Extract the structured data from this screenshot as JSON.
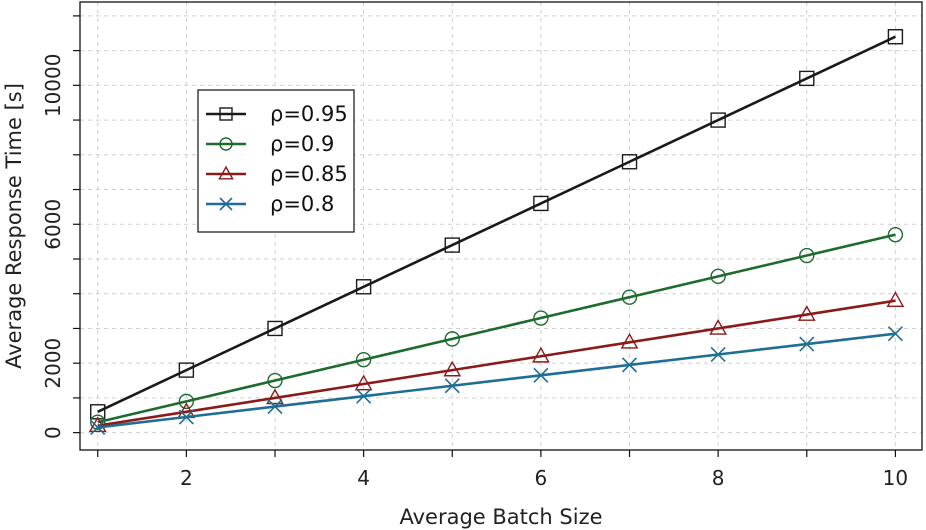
{
  "chart_data": {
    "type": "line",
    "xlabel": "Average Batch Size",
    "ylabel": "Average Response Time [s]",
    "xlim": [
      0.8,
      10.3
    ],
    "ylim": [
      -500,
      12400
    ],
    "xticks": [
      2,
      4,
      6,
      8,
      10
    ],
    "yticks": [
      0,
      2000,
      6000,
      10000
    ],
    "grid": true,
    "legend_position": "top-left",
    "x": [
      1,
      2,
      3,
      4,
      5,
      6,
      7,
      8,
      9,
      10
    ],
    "series": [
      {
        "name": "ρ=0.95",
        "color": "#1a1a1a",
        "marker": "square",
        "values": [
          600,
          1800,
          3000,
          4200,
          5400,
          6600,
          7800,
          9000,
          10200,
          11400
        ]
      },
      {
        "name": "ρ=0.9",
        "color": "#1e6b2e",
        "marker": "circle",
        "values": [
          300,
          900,
          1500,
          2100,
          2700,
          3300,
          3900,
          4500,
          5100,
          5700
        ]
      },
      {
        "name": "ρ=0.85",
        "color": "#8b1a1a",
        "marker": "triangle",
        "values": [
          200,
          600,
          1000,
          1400,
          1800,
          2200,
          2600,
          3000,
          3400,
          3800
        ]
      },
      {
        "name": "ρ=0.8",
        "color": "#1f6e94",
        "marker": "x",
        "values": [
          150,
          450,
          750,
          1050,
          1350,
          1650,
          1950,
          2250,
          2550,
          2850
        ]
      }
    ]
  }
}
